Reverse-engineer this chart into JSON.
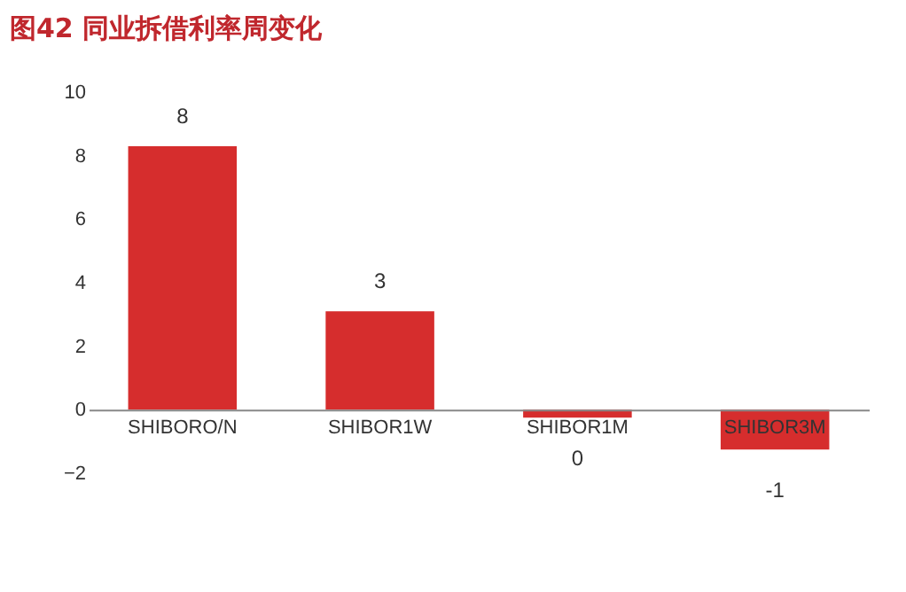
{
  "chart_data": {
    "type": "bar",
    "title": "图42  同业拆借利率周变化",
    "categories": [
      "SHIBORO/N",
      "SHIBOR1W",
      "SHIBOR1M",
      "SHIBOR3M"
    ],
    "values": [
      8.3,
      3.1,
      -0.25,
      -1.25
    ],
    "value_labels": [
      "8",
      "3",
      "0",
      "-1"
    ],
    "color": "#d62d2d",
    "ylim": [
      -2,
      10
    ],
    "yticks": [
      -2,
      0,
      2,
      4,
      6,
      8,
      10
    ],
    "grid": false
  }
}
